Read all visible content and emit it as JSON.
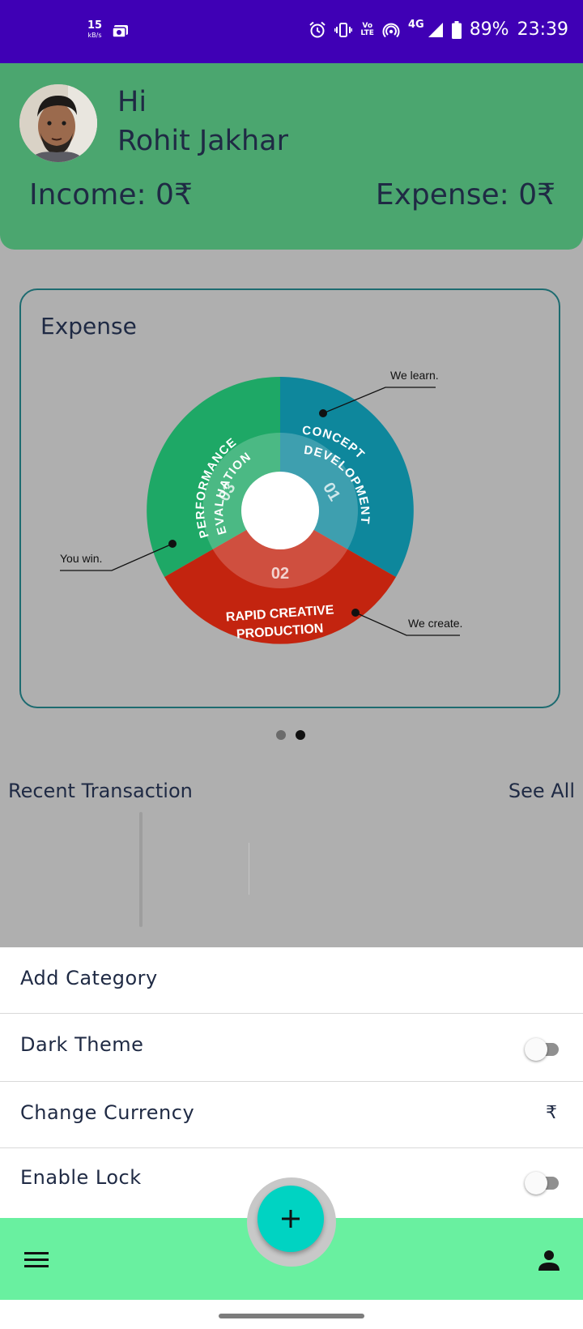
{
  "status_bar": {
    "net_speed": "15",
    "net_unit": "kB/s",
    "lte_line1": "Vo",
    "lte_line2": "LTE",
    "network": "4G",
    "battery": "89%",
    "time": "23:39"
  },
  "header": {
    "greeting": "Hi",
    "user_name": "Rohit Jakhar",
    "income_label": "Income: 0₹",
    "expense_label": "Expense: 0₹"
  },
  "chart_card": {
    "title": "Expense",
    "segments": [
      {
        "number": "01",
        "line1": "CONCEPT",
        "line2": "DEVELOPMENT",
        "callout": "We learn.",
        "color": "#0e879c"
      },
      {
        "number": "02",
        "line1": "RAPID CREATIVE",
        "line2": "PRODUCTION",
        "callout": "We create.",
        "color": "#c3240f"
      },
      {
        "number": "03",
        "line1": "PERFORMANCE",
        "line2": "EVALUATION",
        "callout": "You win.",
        "color": "#1ea866"
      }
    ]
  },
  "pager": {
    "pages": 2,
    "active": 2
  },
  "recent": {
    "title": "Recent Transaction",
    "see_all": "See All"
  },
  "menu": {
    "add_category": "Add Category",
    "dark_theme": "Dark Theme",
    "change_currency": "Change Currency",
    "currency_symbol": "₹",
    "enable_lock": "Enable Lock",
    "dark_theme_on": false,
    "enable_lock_on": false
  },
  "colors": {
    "status_bar": "#3f00b5",
    "header": "#4ba66f",
    "bottom_nav": "#69f0a0",
    "fab": "#00d3c2"
  },
  "icons": {
    "menu": "hamburger-icon",
    "profile": "person-icon",
    "fab": "plus-icon"
  }
}
